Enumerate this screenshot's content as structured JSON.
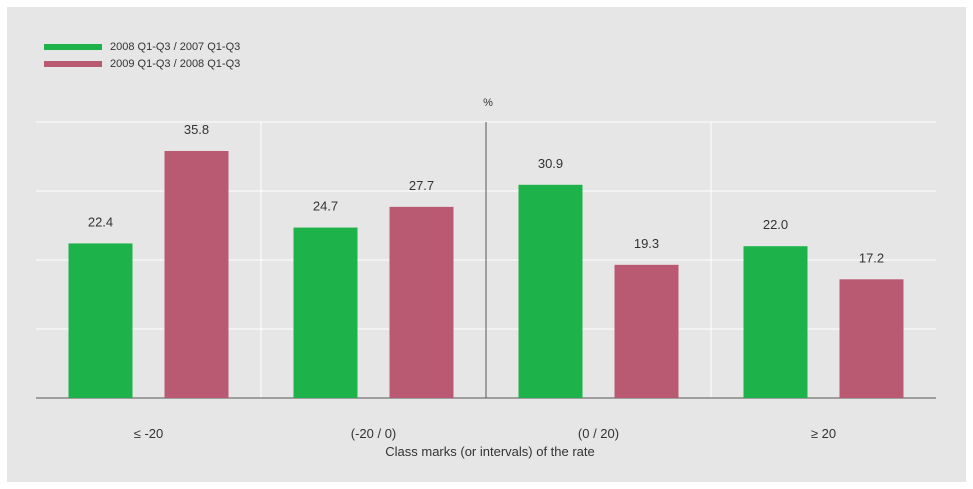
{
  "chart_data": {
    "type": "bar",
    "title": "",
    "unit": "%",
    "xlabel": "Class marks (or intervals) of the rate",
    "ylabel": "",
    "ylim": [
      0,
      40
    ],
    "grid": true,
    "legend_position": "top-left",
    "categories": [
      "≤ -20",
      "(-20 / 0)",
      "(0 / 20)",
      "≥ 20"
    ],
    "series": [
      {
        "name": "2008 Q1-Q3 / 2007 Q1-Q3",
        "color": "#1db34a",
        "values": [
          22.4,
          24.7,
          30.9,
          22.0
        ]
      },
      {
        "name": "2009 Q1-Q3 / 2008 Q1-Q3",
        "color": "#b95a72",
        "values": [
          35.8,
          27.7,
          19.3,
          17.2
        ]
      }
    ],
    "value_labels": [
      [
        "22.4",
        "24.7",
        "30.9",
        "22.0"
      ],
      [
        "35.8",
        "27.7",
        "19.3",
        "17.2"
      ]
    ],
    "colors": {
      "background": "#e6e6e6",
      "gridline": "#ffffff",
      "axis": "#555555",
      "text": "#333333"
    }
  }
}
